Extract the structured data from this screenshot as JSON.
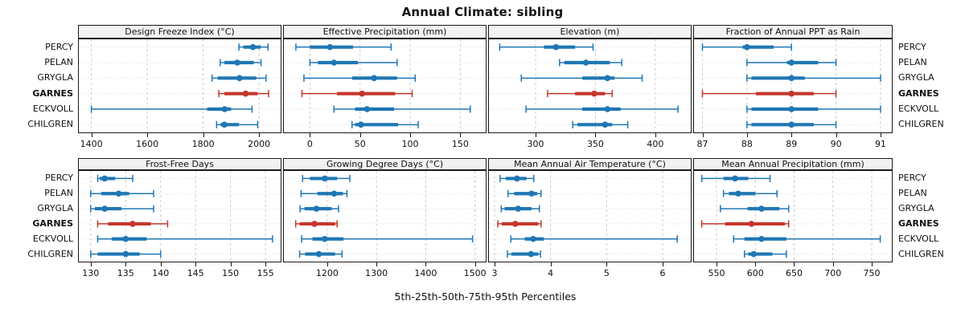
{
  "title": "Annual Climate: sibling",
  "footer": "5th-25th-50th-75th-95th Percentiles",
  "sites": [
    "PERCY",
    "PELAN",
    "GRYGLA",
    "GARNES",
    "ECKVOLL",
    "CHILGREN"
  ],
  "highlight_site": "GARNES",
  "colors": {
    "series_normal": "#1f77b4",
    "series_highlight": "#c5362c",
    "strip_background": "#f2f2f2",
    "panel_border": "#1a1a1a",
    "grid": "#cccccc",
    "row_guide": "#d9d9d9"
  },
  "chart_data": {
    "type": "dot-interval-trellis",
    "percentile_labels": [
      "5th",
      "25th",
      "50th",
      "75th",
      "95th"
    ],
    "legend_position": "none",
    "grid": "dashed-vertical-and-dotted-row-guides",
    "panels": [
      {
        "row": 0,
        "col": 0,
        "title": "Design Freeze Index (°C)",
        "xlim": [
          1355,
          2083
        ],
        "ticks": [
          1400,
          1600,
          1800,
          2000
        ],
        "series": [
          {
            "site": "PERCY",
            "values": [
              1928,
              1944,
              1978,
              2006,
              2032
            ]
          },
          {
            "site": "PELAN",
            "values": [
              1861,
              1876,
              1922,
              1981,
              2007
            ]
          },
          {
            "site": "GRYGLA",
            "values": [
              1832,
              1852,
              1930,
              1990,
              2025
            ]
          },
          {
            "site": "GARNES",
            "values": [
              1856,
              1876,
              1952,
              1995,
              2034
            ]
          },
          {
            "site": "ECKVOLL",
            "values": [
              1400,
              1814,
              1877,
              1900,
              1975
            ]
          },
          {
            "site": "CHILGREN",
            "values": [
              1848,
              1862,
              1876,
              1928,
              1995
            ]
          }
        ]
      },
      {
        "row": 0,
        "col": 1,
        "title": "Effective Precipitation (mm)",
        "xlim": [
          -26,
          177
        ],
        "ticks": [
          0,
          50,
          100,
          150
        ],
        "series": [
          {
            "site": "PERCY",
            "values": [
              -14,
              0,
              20,
              43,
              81
            ]
          },
          {
            "site": "PELAN",
            "values": [
              0,
              8,
              24,
              48,
              87
            ]
          },
          {
            "site": "GRYGLA",
            "values": [
              -6,
              42,
              64,
              87,
              105
            ]
          },
          {
            "site": "GARNES",
            "values": [
              -8,
              27,
              52,
              85,
              102
            ]
          },
          {
            "site": "ECKVOLL",
            "values": [
              24,
              45,
              57,
              84,
              160
            ]
          },
          {
            "site": "CHILGREN",
            "values": [
              42,
              45,
              51,
              88,
              108
            ]
          }
        ]
      },
      {
        "row": 0,
        "col": 2,
        "title": "Elevation (m)",
        "xlim": [
          261,
          431
        ],
        "ticks": [
          300,
          350,
          400
        ],
        "series": [
          {
            "site": "PERCY",
            "values": [
              270,
              307,
              317,
              333,
              348
            ]
          },
          {
            "site": "PELAN",
            "values": [
              320,
              324,
              342,
              362,
              372
            ]
          },
          {
            "site": "GRYGLA",
            "values": [
              288,
              339,
              360,
              366,
              389
            ]
          },
          {
            "site": "GARNES",
            "values": [
              310,
              333,
              349,
              358,
              364
            ]
          },
          {
            "site": "ECKVOLL",
            "values": [
              292,
              339,
              360,
              371,
              419
            ]
          },
          {
            "site": "CHILGREN",
            "values": [
              331,
              335,
              358,
              364,
              377
            ]
          }
        ]
      },
      {
        "row": 0,
        "col": 3,
        "title": "Fraction of Annual PPT as Rain",
        "xlim": [
          86.81,
          91.29
        ],
        "ticks": [
          87,
          88,
          89,
          90,
          91
        ],
        "series": [
          {
            "site": "PERCY",
            "values": [
              87,
              87.9,
              88,
              88.6,
              89
            ]
          },
          {
            "site": "PELAN",
            "values": [
              88,
              88.9,
              89,
              89.6,
              90
            ]
          },
          {
            "site": "GRYGLA",
            "values": [
              88,
              88.1,
              89,
              89.3,
              91
            ]
          },
          {
            "site": "GARNES",
            "values": [
              87,
              88.2,
              89,
              89.5,
              90
            ]
          },
          {
            "site": "ECKVOLL",
            "values": [
              88,
              88.1,
              89,
              89.6,
              91
            ]
          },
          {
            "site": "CHILGREN",
            "values": [
              88,
              88.1,
              89,
              89.5,
              90
            ]
          }
        ]
      },
      {
        "row": 1,
        "col": 0,
        "title": "Frost-Free Days",
        "xlim": [
          128.3,
          157.4
        ],
        "ticks": [
          130,
          135,
          140,
          145,
          150,
          155
        ],
        "series": [
          {
            "site": "PERCY",
            "values": [
              131,
              131.3,
              132,
              133.5,
              136
            ]
          },
          {
            "site": "PELAN",
            "values": [
              130,
              131.5,
              134,
              135.5,
              139
            ]
          },
          {
            "site": "GRYGLA",
            "values": [
              130,
              130.6,
              132,
              134.4,
              139
            ]
          },
          {
            "site": "GARNES",
            "values": [
              131,
              132.5,
              136,
              138.6,
              141
            ]
          },
          {
            "site": "ECKVOLL",
            "values": [
              131,
              133,
              135,
              138,
              156
            ]
          },
          {
            "site": "CHILGREN",
            "values": [
              130,
              131,
              135,
              137,
              140
            ]
          }
        ]
      },
      {
        "row": 1,
        "col": 1,
        "title": "Growing Degree Days (°C)",
        "xlim": [
          1112,
          1525
        ],
        "ticks": [
          1200,
          1300,
          1400,
          1500
        ],
        "series": [
          {
            "site": "PERCY",
            "values": [
              1150,
              1165,
              1195,
              1220,
              1246
            ]
          },
          {
            "site": "PELAN",
            "values": [
              1147,
              1180,
              1214,
              1232,
              1240
            ]
          },
          {
            "site": "GRYGLA",
            "values": [
              1145,
              1154,
              1178,
              1209,
              1223
            ]
          },
          {
            "site": "GARNES",
            "values": [
              1136,
              1144,
              1174,
              1216,
              1220
            ]
          },
          {
            "site": "ECKVOLL",
            "values": [
              1148,
              1170,
              1195,
              1233,
              1495
            ]
          },
          {
            "site": "CHILGREN",
            "values": [
              1144,
              1155,
              1183,
              1216,
              1230
            ]
          }
        ]
      },
      {
        "row": 1,
        "col": 2,
        "title": "Mean Annual Air Temperature (°C)",
        "xlim": [
          2.9,
          6.53
        ],
        "ticks": [
          3,
          4,
          5,
          6
        ],
        "series": [
          {
            "site": "PERCY",
            "values": [
              3.1,
              3.2,
              3.4,
              3.57,
              3.7
            ]
          },
          {
            "site": "PELAN",
            "values": [
              3.24,
              3.35,
              3.66,
              3.76,
              3.83
            ]
          },
          {
            "site": "GRYGLA",
            "values": [
              3.12,
              3.18,
              3.42,
              3.66,
              3.8
            ]
          },
          {
            "site": "GARNES",
            "values": [
              3.06,
              3.13,
              3.37,
              3.78,
              3.83
            ]
          },
          {
            "site": "ECKVOLL",
            "values": [
              3.29,
              3.54,
              3.69,
              3.88,
              6.26
            ]
          },
          {
            "site": "CHILGREN",
            "values": [
              3.23,
              3.3,
              3.65,
              3.78,
              3.82
            ]
          }
        ]
      },
      {
        "row": 1,
        "col": 3,
        "title": "Mean Annual Precipitation (mm)",
        "xlim": [
          521,
          778
        ],
        "ticks": [
          550,
          600,
          650,
          700,
          750
        ],
        "series": [
          {
            "site": "PERCY",
            "values": [
              531,
              559,
              574,
              591,
              619
            ]
          },
          {
            "site": "PELAN",
            "values": [
              559,
              566,
              578,
              600,
              628
            ]
          },
          {
            "site": "GRYGLA",
            "values": [
              555,
              590,
              608,
              631,
              643
            ]
          },
          {
            "site": "GARNES",
            "values": [
              531,
              561,
              595,
              638,
              643
            ]
          },
          {
            "site": "ECKVOLL",
            "values": [
              572,
              586,
              608,
              640,
              761
            ]
          },
          {
            "site": "CHILGREN",
            "values": [
              586,
              591,
              598,
              622,
              640
            ]
          }
        ]
      }
    ]
  }
}
